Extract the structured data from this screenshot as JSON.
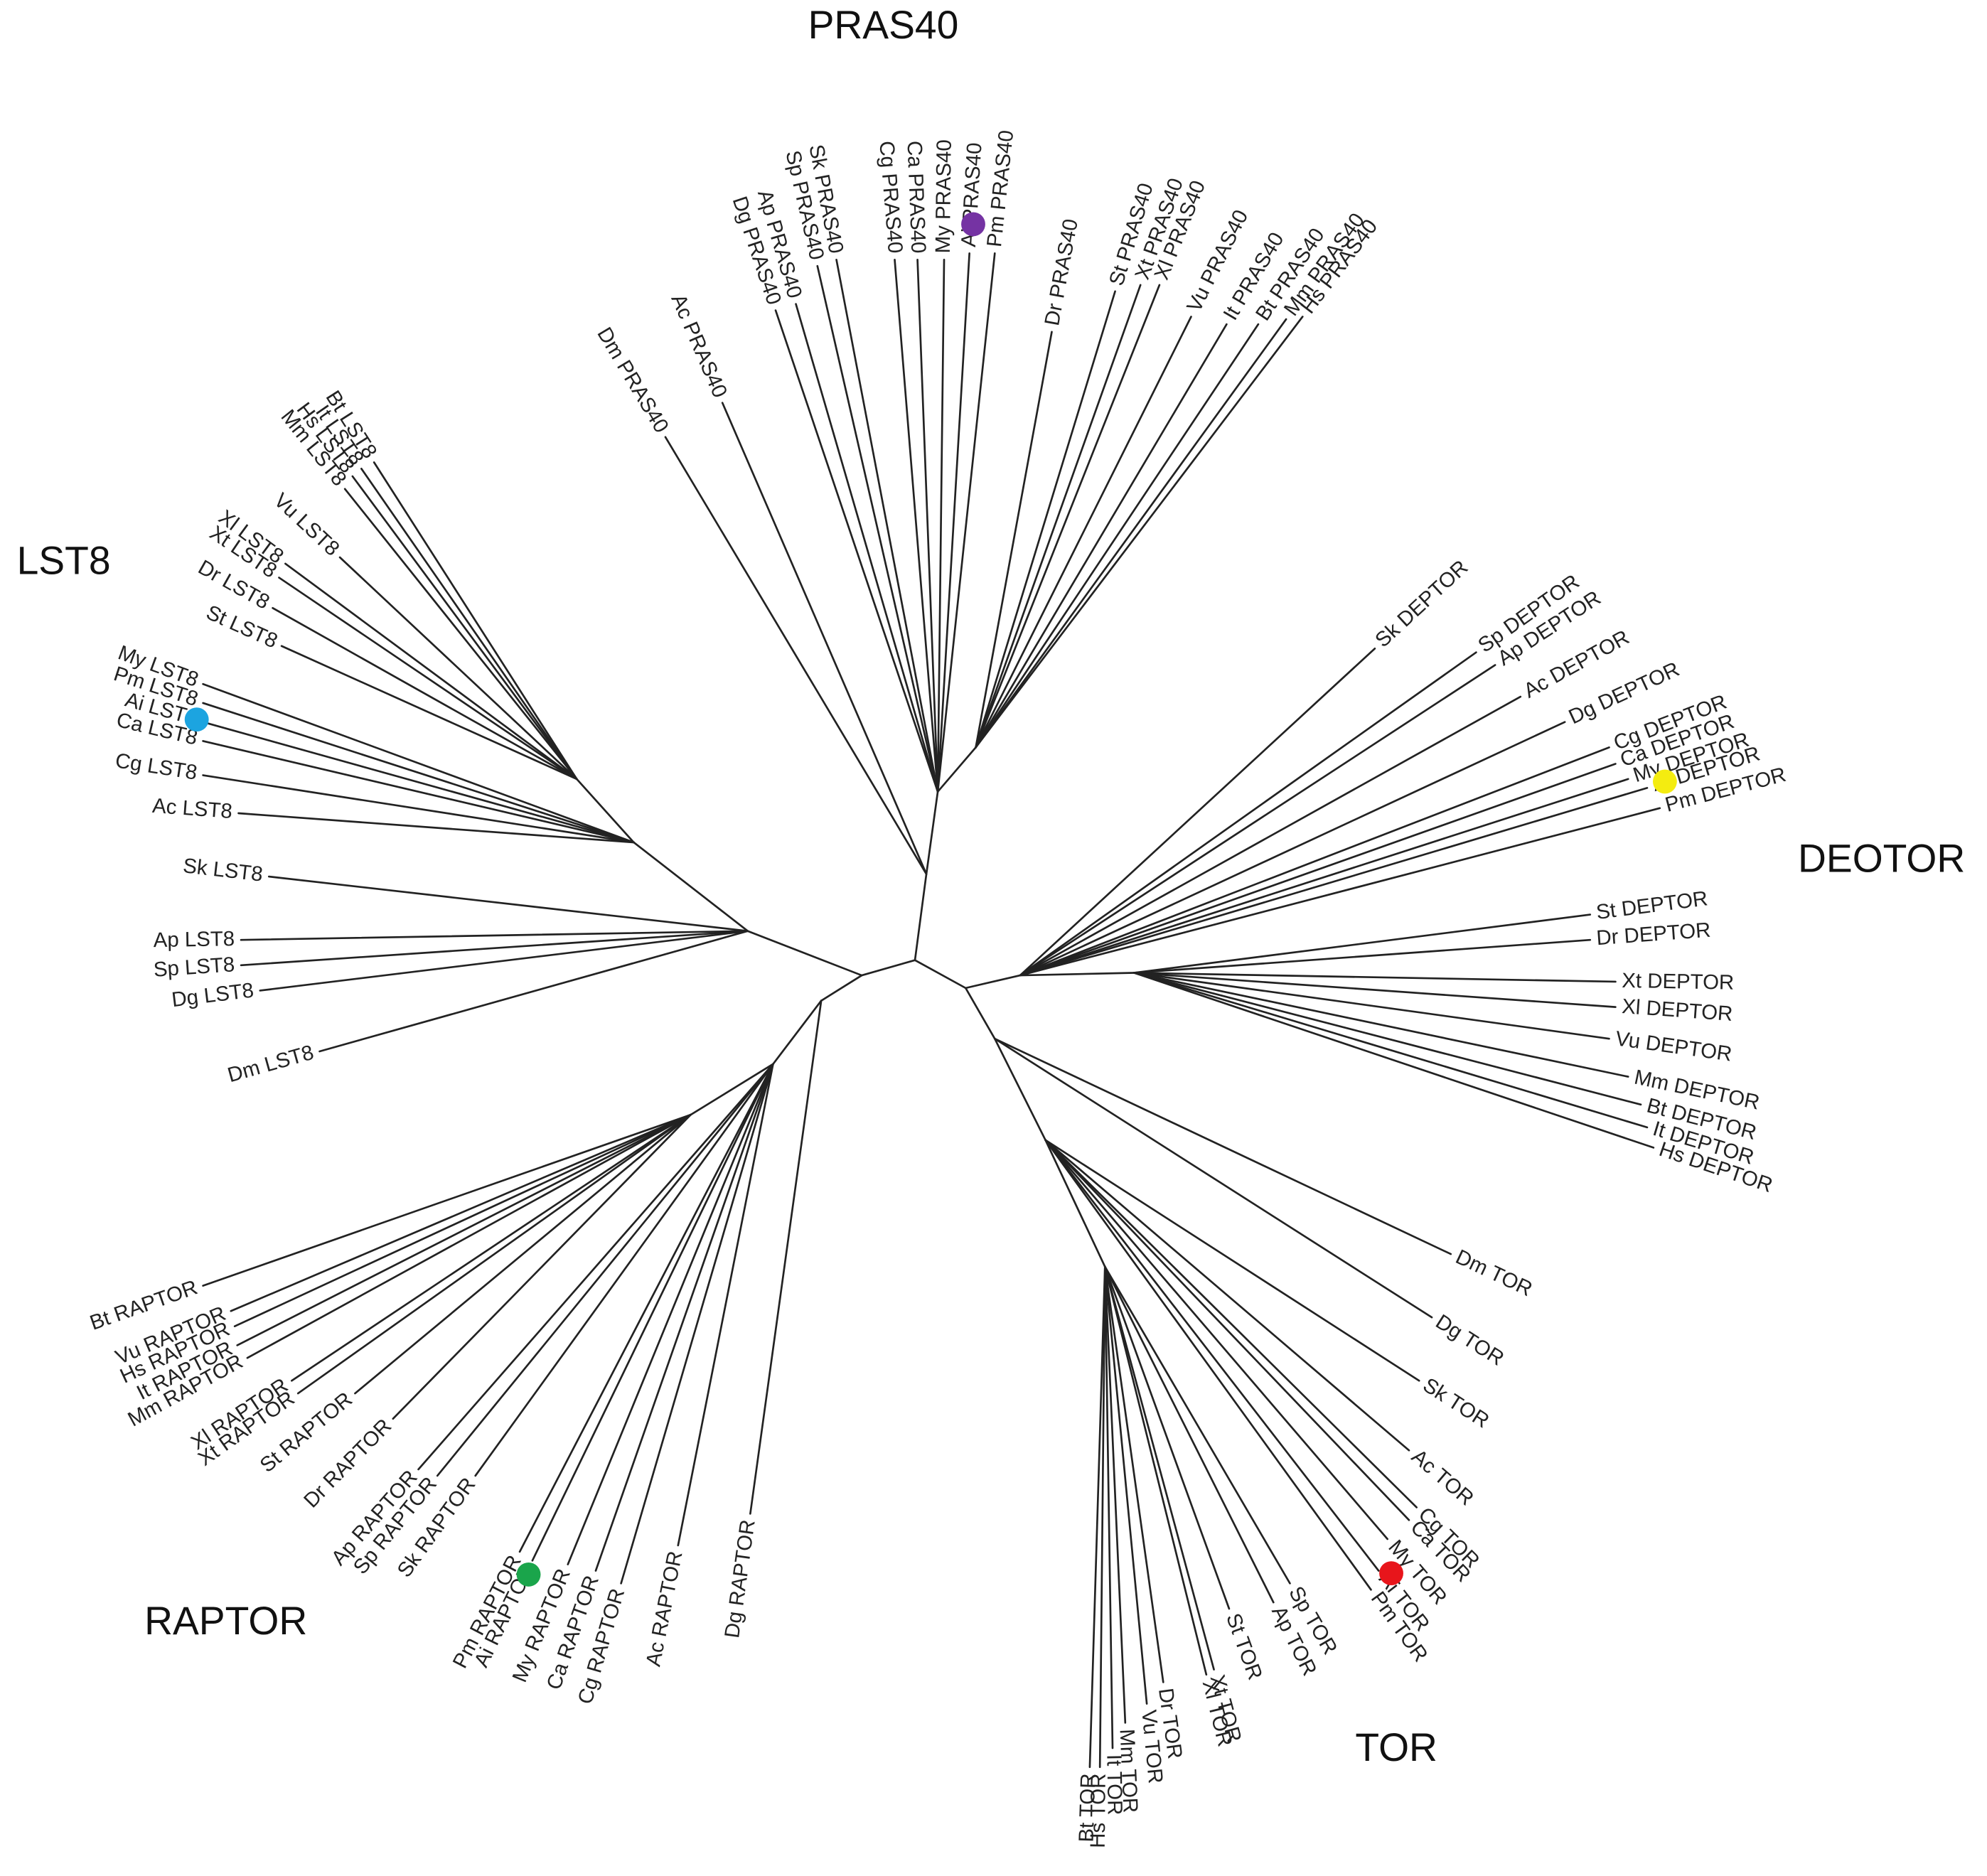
{
  "groups": [
    {
      "label": "PRAS40",
      "leaves": [
        "Dm PRAS40",
        "Ac PRAS40",
        "Dg PRAS40",
        "Ap PRAS40",
        "Sp PRAS40",
        "Sk PRAS40",
        "Cg PRAS40",
        "Ca PRAS40",
        "My PRAS40",
        "Ai PRAS40",
        "Pm PRAS40",
        "Dr PRAS40",
        "St PRAS40",
        "Xt PRAS40",
        "Xl PRAS40",
        "Vu PRAS40",
        "It PRAS40",
        "Bt PRAS40",
        "Mm PRAS40",
        "Hs PRAS40"
      ]
    },
    {
      "label": "LST8",
      "leaves": [
        "Bt LST8",
        "It LST8",
        "Hs LST8",
        "Mm LST8",
        "Vu LST8",
        "Xl LST8",
        "Xt LST8",
        "Dr LST8",
        "St LST8",
        "My LST8",
        "Pm LST8",
        "Ai LST8",
        "Ca LST8",
        "Cg LST8",
        "Ac LST8",
        "Sk LST8",
        "Ap LST8",
        "Sp LST8",
        "Dg LST8",
        "Dm LST8"
      ]
    },
    {
      "label": "DEOTOR",
      "leaves": [
        "Sk DEPTOR",
        "Sp DEPTOR",
        "Ap DEPTOR",
        "Ac DEPTOR",
        "Dg DEPTOR",
        "Cg DEPTOR",
        "Ca DEPTOR",
        "My DEPTOR",
        "Ai DEPTOR",
        "Pm DEPTOR",
        "St DEPTOR",
        "Dr DEPTOR",
        "Xt DEPTOR",
        "Xl DEPTOR",
        "Vu DEPTOR",
        "Mm DEPTOR",
        "Bt DEPTOR",
        "It DEPTOR",
        "Hs DEPTOR"
      ]
    },
    {
      "label": "TOR",
      "leaves": [
        "Dm TOR",
        "Dg TOR",
        "Sk TOR",
        "Ac TOR",
        "Cg TOR",
        "Ca TOR",
        "My TOR",
        "Ai TOR",
        "Pm TOR",
        "Sp TOR",
        "Ap TOR",
        "St TOR",
        "Xt TOR",
        "Xl TOR",
        "Dr TOR",
        "Vu TOR",
        "Mm TOR",
        "It TOR",
        "Hs TOR",
        "Bt TOR"
      ]
    },
    {
      "label": "RAPTOR",
      "leaves": [
        "Bt RAPTOR",
        "Vu RAPTOR",
        "Hs RAPTOR",
        "It RAPTOR",
        "Mm RAPTOR",
        "Xl RAPTOR",
        "Xt RAPTOR",
        "St RAPTOR",
        "Dr RAPTOR",
        "Ap RAPTOR",
        "Sp RAPTOR",
        "Sk RAPTOR",
        "Pm RAPTOR",
        "Ai RAPTOR",
        "My RAPTOR",
        "Ca RAPTOR",
        "Cg RAPTOR",
        "Ac RAPTOR",
        "Dg RAPTOR"
      ]
    }
  ]
}
